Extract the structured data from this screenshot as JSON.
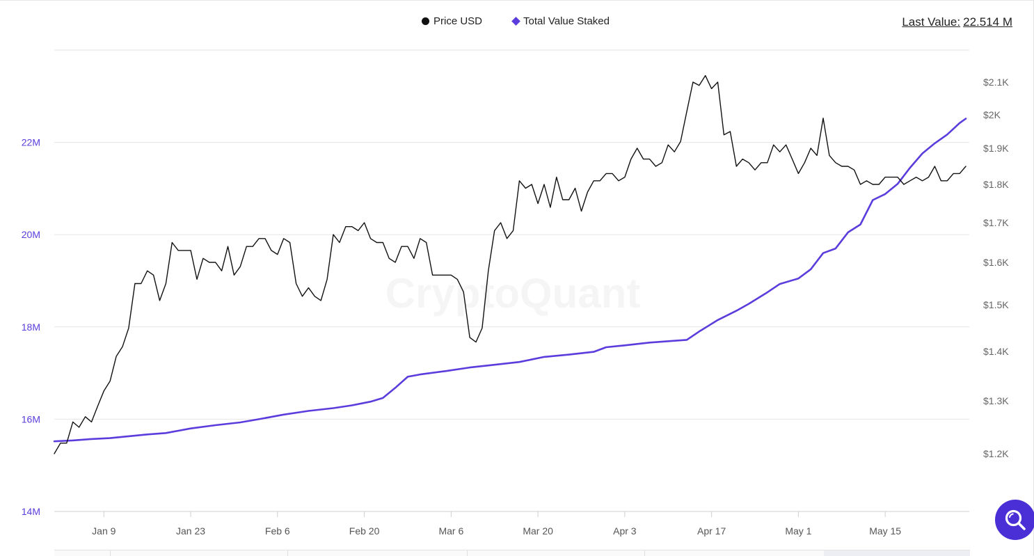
{
  "legend": {
    "price_label": "Price USD",
    "staked_label": "Total Value Staked"
  },
  "last_value": {
    "label": "Last Value:",
    "value": "22.514 M"
  },
  "watermark": "CryptoQuant",
  "chart_data": {
    "type": "line",
    "x_tick_labels": [
      "Jan 9",
      "Jan 23",
      "Feb 6",
      "Feb 20",
      "Mar 6",
      "Mar 20",
      "Apr 3",
      "Apr 17",
      "May 1",
      "May 15"
    ],
    "x_range": [
      "2023-01-01",
      "2023-05-28"
    ],
    "y_left": {
      "ticks": [
        14,
        16,
        18,
        20,
        22
      ],
      "tick_labels": [
        "14M",
        "16M",
        "18M",
        "20M",
        "22M"
      ],
      "range": [
        14,
        24
      ]
    },
    "y_right": {
      "ticks": [
        1.2,
        1.3,
        1.4,
        1.5,
        1.6,
        1.7,
        1.8,
        1.9,
        2.0,
        2.1
      ],
      "tick_labels": [
        "$1.2K",
        "$1.3K",
        "$1.4K",
        "$1.5K",
        "$1.6K",
        "$1.7K",
        "$1.8K",
        "$1.9K",
        "$2K",
        "$2.1K"
      ]
    },
    "grid": "horizontal",
    "legend_position": "top-center",
    "colors": {
      "price": "#111111",
      "staked": "#5b3cdc",
      "left_axis": "#5b3cdc",
      "right_axis": "#666666"
    },
    "series": [
      {
        "name": "Total Value Staked",
        "axis": "left",
        "unit": "M",
        "points": [
          [
            "2023-01-01",
            15.52
          ],
          [
            "2023-01-04",
            15.54
          ],
          [
            "2023-01-07",
            15.57
          ],
          [
            "2023-01-10",
            15.59
          ],
          [
            "2023-01-13",
            15.63
          ],
          [
            "2023-01-16",
            15.67
          ],
          [
            "2023-01-19",
            15.7
          ],
          [
            "2023-01-23",
            15.8
          ],
          [
            "2023-01-27",
            15.87
          ],
          [
            "2023-01-31",
            15.93
          ],
          [
            "2023-02-03",
            16.0
          ],
          [
            "2023-02-07",
            16.1
          ],
          [
            "2023-02-11",
            16.18
          ],
          [
            "2023-02-15",
            16.24
          ],
          [
            "2023-02-18",
            16.3
          ],
          [
            "2023-02-21",
            16.38
          ],
          [
            "2023-02-23",
            16.46
          ],
          [
            "2023-02-25",
            16.68
          ],
          [
            "2023-02-27",
            16.92
          ],
          [
            "2023-03-01",
            16.97
          ],
          [
            "2023-03-05",
            17.04
          ],
          [
            "2023-03-09",
            17.12
          ],
          [
            "2023-03-13",
            17.18
          ],
          [
            "2023-03-17",
            17.24
          ],
          [
            "2023-03-21",
            17.35
          ],
          [
            "2023-03-25",
            17.4
          ],
          [
            "2023-03-29",
            17.46
          ],
          [
            "2023-03-31",
            17.56
          ],
          [
            "2023-04-03",
            17.6
          ],
          [
            "2023-04-07",
            17.66
          ],
          [
            "2023-04-11",
            17.7
          ],
          [
            "2023-04-13",
            17.72
          ],
          [
            "2023-04-15",
            17.9
          ],
          [
            "2023-04-18",
            18.15
          ],
          [
            "2023-04-21",
            18.35
          ],
          [
            "2023-04-23",
            18.5
          ],
          [
            "2023-04-26",
            18.75
          ],
          [
            "2023-04-28",
            18.93
          ],
          [
            "2023-05-01",
            19.05
          ],
          [
            "2023-05-03",
            19.25
          ],
          [
            "2023-05-05",
            19.6
          ],
          [
            "2023-05-07",
            19.7
          ],
          [
            "2023-05-09",
            20.05
          ],
          [
            "2023-05-11",
            20.22
          ],
          [
            "2023-05-13",
            20.75
          ],
          [
            "2023-05-15",
            20.88
          ],
          [
            "2023-05-17",
            21.1
          ],
          [
            "2023-05-19",
            21.45
          ],
          [
            "2023-05-21",
            21.76
          ],
          [
            "2023-05-23",
            21.98
          ],
          [
            "2023-05-25",
            22.17
          ],
          [
            "2023-05-27",
            22.42
          ],
          [
            "2023-05-28",
            22.514
          ]
        ]
      },
      {
        "name": "Price USD",
        "axis": "right",
        "unit": "K",
        "points": [
          [
            "2023-01-01",
            1.2
          ],
          [
            "2023-01-02",
            1.22
          ],
          [
            "2023-01-03",
            1.22
          ],
          [
            "2023-01-04",
            1.26
          ],
          [
            "2023-01-05",
            1.25
          ],
          [
            "2023-01-06",
            1.27
          ],
          [
            "2023-01-07",
            1.26
          ],
          [
            "2023-01-08",
            1.29
          ],
          [
            "2023-01-09",
            1.32
          ],
          [
            "2023-01-10",
            1.34
          ],
          [
            "2023-01-11",
            1.39
          ],
          [
            "2023-01-12",
            1.41
          ],
          [
            "2023-01-13",
            1.45
          ],
          [
            "2023-01-14",
            1.55
          ],
          [
            "2023-01-15",
            1.55
          ],
          [
            "2023-01-16",
            1.58
          ],
          [
            "2023-01-17",
            1.57
          ],
          [
            "2023-01-18",
            1.51
          ],
          [
            "2023-01-19",
            1.55
          ],
          [
            "2023-01-20",
            1.65
          ],
          [
            "2023-01-21",
            1.63
          ],
          [
            "2023-01-22",
            1.63
          ],
          [
            "2023-01-23",
            1.63
          ],
          [
            "2023-01-24",
            1.56
          ],
          [
            "2023-01-25",
            1.61
          ],
          [
            "2023-01-26",
            1.6
          ],
          [
            "2023-01-27",
            1.6
          ],
          [
            "2023-01-28",
            1.58
          ],
          [
            "2023-01-29",
            1.64
          ],
          [
            "2023-01-30",
            1.57
          ],
          [
            "2023-01-31",
            1.59
          ],
          [
            "2023-02-01",
            1.64
          ],
          [
            "2023-02-02",
            1.64
          ],
          [
            "2023-02-03",
            1.66
          ],
          [
            "2023-02-04",
            1.66
          ],
          [
            "2023-02-05",
            1.63
          ],
          [
            "2023-02-06",
            1.62
          ],
          [
            "2023-02-07",
            1.66
          ],
          [
            "2023-02-08",
            1.65
          ],
          [
            "2023-02-09",
            1.55
          ],
          [
            "2023-02-10",
            1.52
          ],
          [
            "2023-02-11",
            1.54
          ],
          [
            "2023-02-12",
            1.52
          ],
          [
            "2023-02-13",
            1.51
          ],
          [
            "2023-02-14",
            1.56
          ],
          [
            "2023-02-15",
            1.67
          ],
          [
            "2023-02-16",
            1.65
          ],
          [
            "2023-02-17",
            1.69
          ],
          [
            "2023-02-18",
            1.69
          ],
          [
            "2023-02-19",
            1.68
          ],
          [
            "2023-02-20",
            1.7
          ],
          [
            "2023-02-21",
            1.66
          ],
          [
            "2023-02-22",
            1.65
          ],
          [
            "2023-02-23",
            1.65
          ],
          [
            "2023-02-24",
            1.61
          ],
          [
            "2023-02-25",
            1.6
          ],
          [
            "2023-02-26",
            1.64
          ],
          [
            "2023-02-27",
            1.64
          ],
          [
            "2023-02-28",
            1.61
          ],
          [
            "2023-03-01",
            1.66
          ],
          [
            "2023-03-02",
            1.65
          ],
          [
            "2023-03-03",
            1.57
          ],
          [
            "2023-03-04",
            1.57
          ],
          [
            "2023-03-05",
            1.57
          ],
          [
            "2023-03-06",
            1.57
          ],
          [
            "2023-03-07",
            1.56
          ],
          [
            "2023-03-08",
            1.53
          ],
          [
            "2023-03-09",
            1.43
          ],
          [
            "2023-03-10",
            1.42
          ],
          [
            "2023-03-11",
            1.45
          ],
          [
            "2023-03-12",
            1.58
          ],
          [
            "2023-03-13",
            1.68
          ],
          [
            "2023-03-14",
            1.7
          ],
          [
            "2023-03-15",
            1.66
          ],
          [
            "2023-03-16",
            1.68
          ],
          [
            "2023-03-17",
            1.81
          ],
          [
            "2023-03-18",
            1.79
          ],
          [
            "2023-03-19",
            1.8
          ],
          [
            "2023-03-20",
            1.75
          ],
          [
            "2023-03-21",
            1.8
          ],
          [
            "2023-03-22",
            1.74
          ],
          [
            "2023-03-23",
            1.82
          ],
          [
            "2023-03-24",
            1.76
          ],
          [
            "2023-03-25",
            1.76
          ],
          [
            "2023-03-26",
            1.79
          ],
          [
            "2023-03-27",
            1.73
          ],
          [
            "2023-03-28",
            1.78
          ],
          [
            "2023-03-29",
            1.81
          ],
          [
            "2023-03-30",
            1.81
          ],
          [
            "2023-03-31",
            1.83
          ],
          [
            "2023-04-01",
            1.83
          ],
          [
            "2023-04-02",
            1.81
          ],
          [
            "2023-04-03",
            1.82
          ],
          [
            "2023-04-04",
            1.87
          ],
          [
            "2023-04-05",
            1.9
          ],
          [
            "2023-04-06",
            1.87
          ],
          [
            "2023-04-07",
            1.87
          ],
          [
            "2023-04-08",
            1.85
          ],
          [
            "2023-04-09",
            1.86
          ],
          [
            "2023-04-10",
            1.91
          ],
          [
            "2023-04-11",
            1.89
          ],
          [
            "2023-04-12",
            1.92
          ],
          [
            "2023-04-13",
            2.01
          ],
          [
            "2023-04-14",
            2.1
          ],
          [
            "2023-04-15",
            2.09
          ],
          [
            "2023-04-16",
            2.12
          ],
          [
            "2023-04-17",
            2.08
          ],
          [
            "2023-04-18",
            2.1
          ],
          [
            "2023-04-19",
            1.94
          ],
          [
            "2023-04-20",
            1.95
          ],
          [
            "2023-04-21",
            1.85
          ],
          [
            "2023-04-22",
            1.87
          ],
          [
            "2023-04-23",
            1.86
          ],
          [
            "2023-04-24",
            1.84
          ],
          [
            "2023-04-25",
            1.86
          ],
          [
            "2023-04-26",
            1.86
          ],
          [
            "2023-04-27",
            1.91
          ],
          [
            "2023-04-28",
            1.89
          ],
          [
            "2023-04-29",
            1.91
          ],
          [
            "2023-04-30",
            1.87
          ],
          [
            "2023-05-01",
            1.83
          ],
          [
            "2023-05-02",
            1.86
          ],
          [
            "2023-05-03",
            1.9
          ],
          [
            "2023-05-04",
            1.88
          ],
          [
            "2023-05-05",
            1.99
          ],
          [
            "2023-05-06",
            1.88
          ],
          [
            "2023-05-07",
            1.86
          ],
          [
            "2023-05-08",
            1.85
          ],
          [
            "2023-05-09",
            1.85
          ],
          [
            "2023-05-10",
            1.84
          ],
          [
            "2023-05-11",
            1.8
          ],
          [
            "2023-05-12",
            1.81
          ],
          [
            "2023-05-13",
            1.8
          ],
          [
            "2023-05-14",
            1.8
          ],
          [
            "2023-05-15",
            1.82
          ],
          [
            "2023-05-16",
            1.82
          ],
          [
            "2023-05-17",
            1.82
          ],
          [
            "2023-05-18",
            1.8
          ],
          [
            "2023-05-19",
            1.81
          ],
          [
            "2023-05-20",
            1.82
          ],
          [
            "2023-05-21",
            1.81
          ],
          [
            "2023-05-22",
            1.82
          ],
          [
            "2023-05-23",
            1.85
          ],
          [
            "2023-05-24",
            1.81
          ],
          [
            "2023-05-25",
            1.81
          ],
          [
            "2023-05-26",
            1.83
          ],
          [
            "2023-05-27",
            1.83
          ],
          [
            "2023-05-28",
            1.85
          ]
        ]
      }
    ]
  }
}
